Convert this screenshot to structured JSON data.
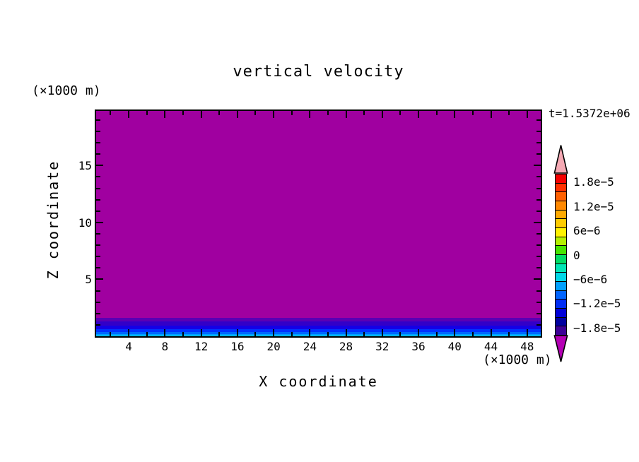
{
  "chart_data": {
    "type": "heatmap",
    "title": "vertical velocity",
    "time_annotation": "t=1.5372e+06",
    "xlabel": "X coordinate",
    "ylabel": "Z coordinate",
    "x_units_label": "(×1000 m)",
    "y_units_label": "(×1000 m)",
    "x_range": [
      0.4,
      49.5
    ],
    "y_range": [
      0,
      19.8
    ],
    "x_major_ticks": [
      4,
      8,
      12,
      16,
      20,
      24,
      28,
      32,
      36,
      40,
      44,
      48
    ],
    "x_minor_step": 2,
    "y_major_ticks": [
      5,
      10,
      15
    ],
    "y_minor_step": 1,
    "grid": false,
    "field_note": "horizontally uniform field: purple (below colorbar minimum) over most of domain, thin boundary band near z=0 rising from dark violet through blue to cyan",
    "bands": [
      {
        "z_top": 19.8,
        "color": "#a000a0"
      },
      {
        "z_top": 1.62,
        "color": "#5a00b4"
      },
      {
        "z_top": 1.31,
        "color": "#3200c8"
      },
      {
        "z_top": 0.94,
        "color": "#1400e6"
      },
      {
        "z_top": 0.62,
        "color": "#0032ff"
      },
      {
        "z_top": 0.37,
        "color": "#0069ff"
      },
      {
        "z_top": 0.19,
        "color": "#00a0ff"
      },
      {
        "z_top": 0.08,
        "color": "#00d2ff"
      }
    ],
    "colorbar": {
      "position": "right",
      "value_range": [
        -2e-05,
        2e-05
      ],
      "over_color": "#f5a9b4",
      "under_color": "#b400b4",
      "segment_colors_top_to_bottom": [
        "#f40000",
        "#ff3000",
        "#ff6000",
        "#ff8800",
        "#ffaa00",
        "#ffcc00",
        "#fff200",
        "#b4f000",
        "#46e400",
        "#00dc64",
        "#00e6b4",
        "#00d8e8",
        "#00a0ff",
        "#0064ff",
        "#002cf4",
        "#0000d8",
        "#0000a0",
        "#3c0096"
      ],
      "ticks": [
        {
          "value": 1.8e-05,
          "label": "1.8e−5"
        },
        {
          "value": 1.2e-05,
          "label": "1.2e−5"
        },
        {
          "value": 6e-06,
          "label": "6e−6"
        },
        {
          "value": 0,
          "label": "0"
        },
        {
          "value": -6e-06,
          "label": "−6e−6"
        },
        {
          "value": -1.2e-05,
          "label": "−1.2e−5"
        },
        {
          "value": -1.8e-05,
          "label": "−1.8e−5"
        }
      ]
    }
  }
}
